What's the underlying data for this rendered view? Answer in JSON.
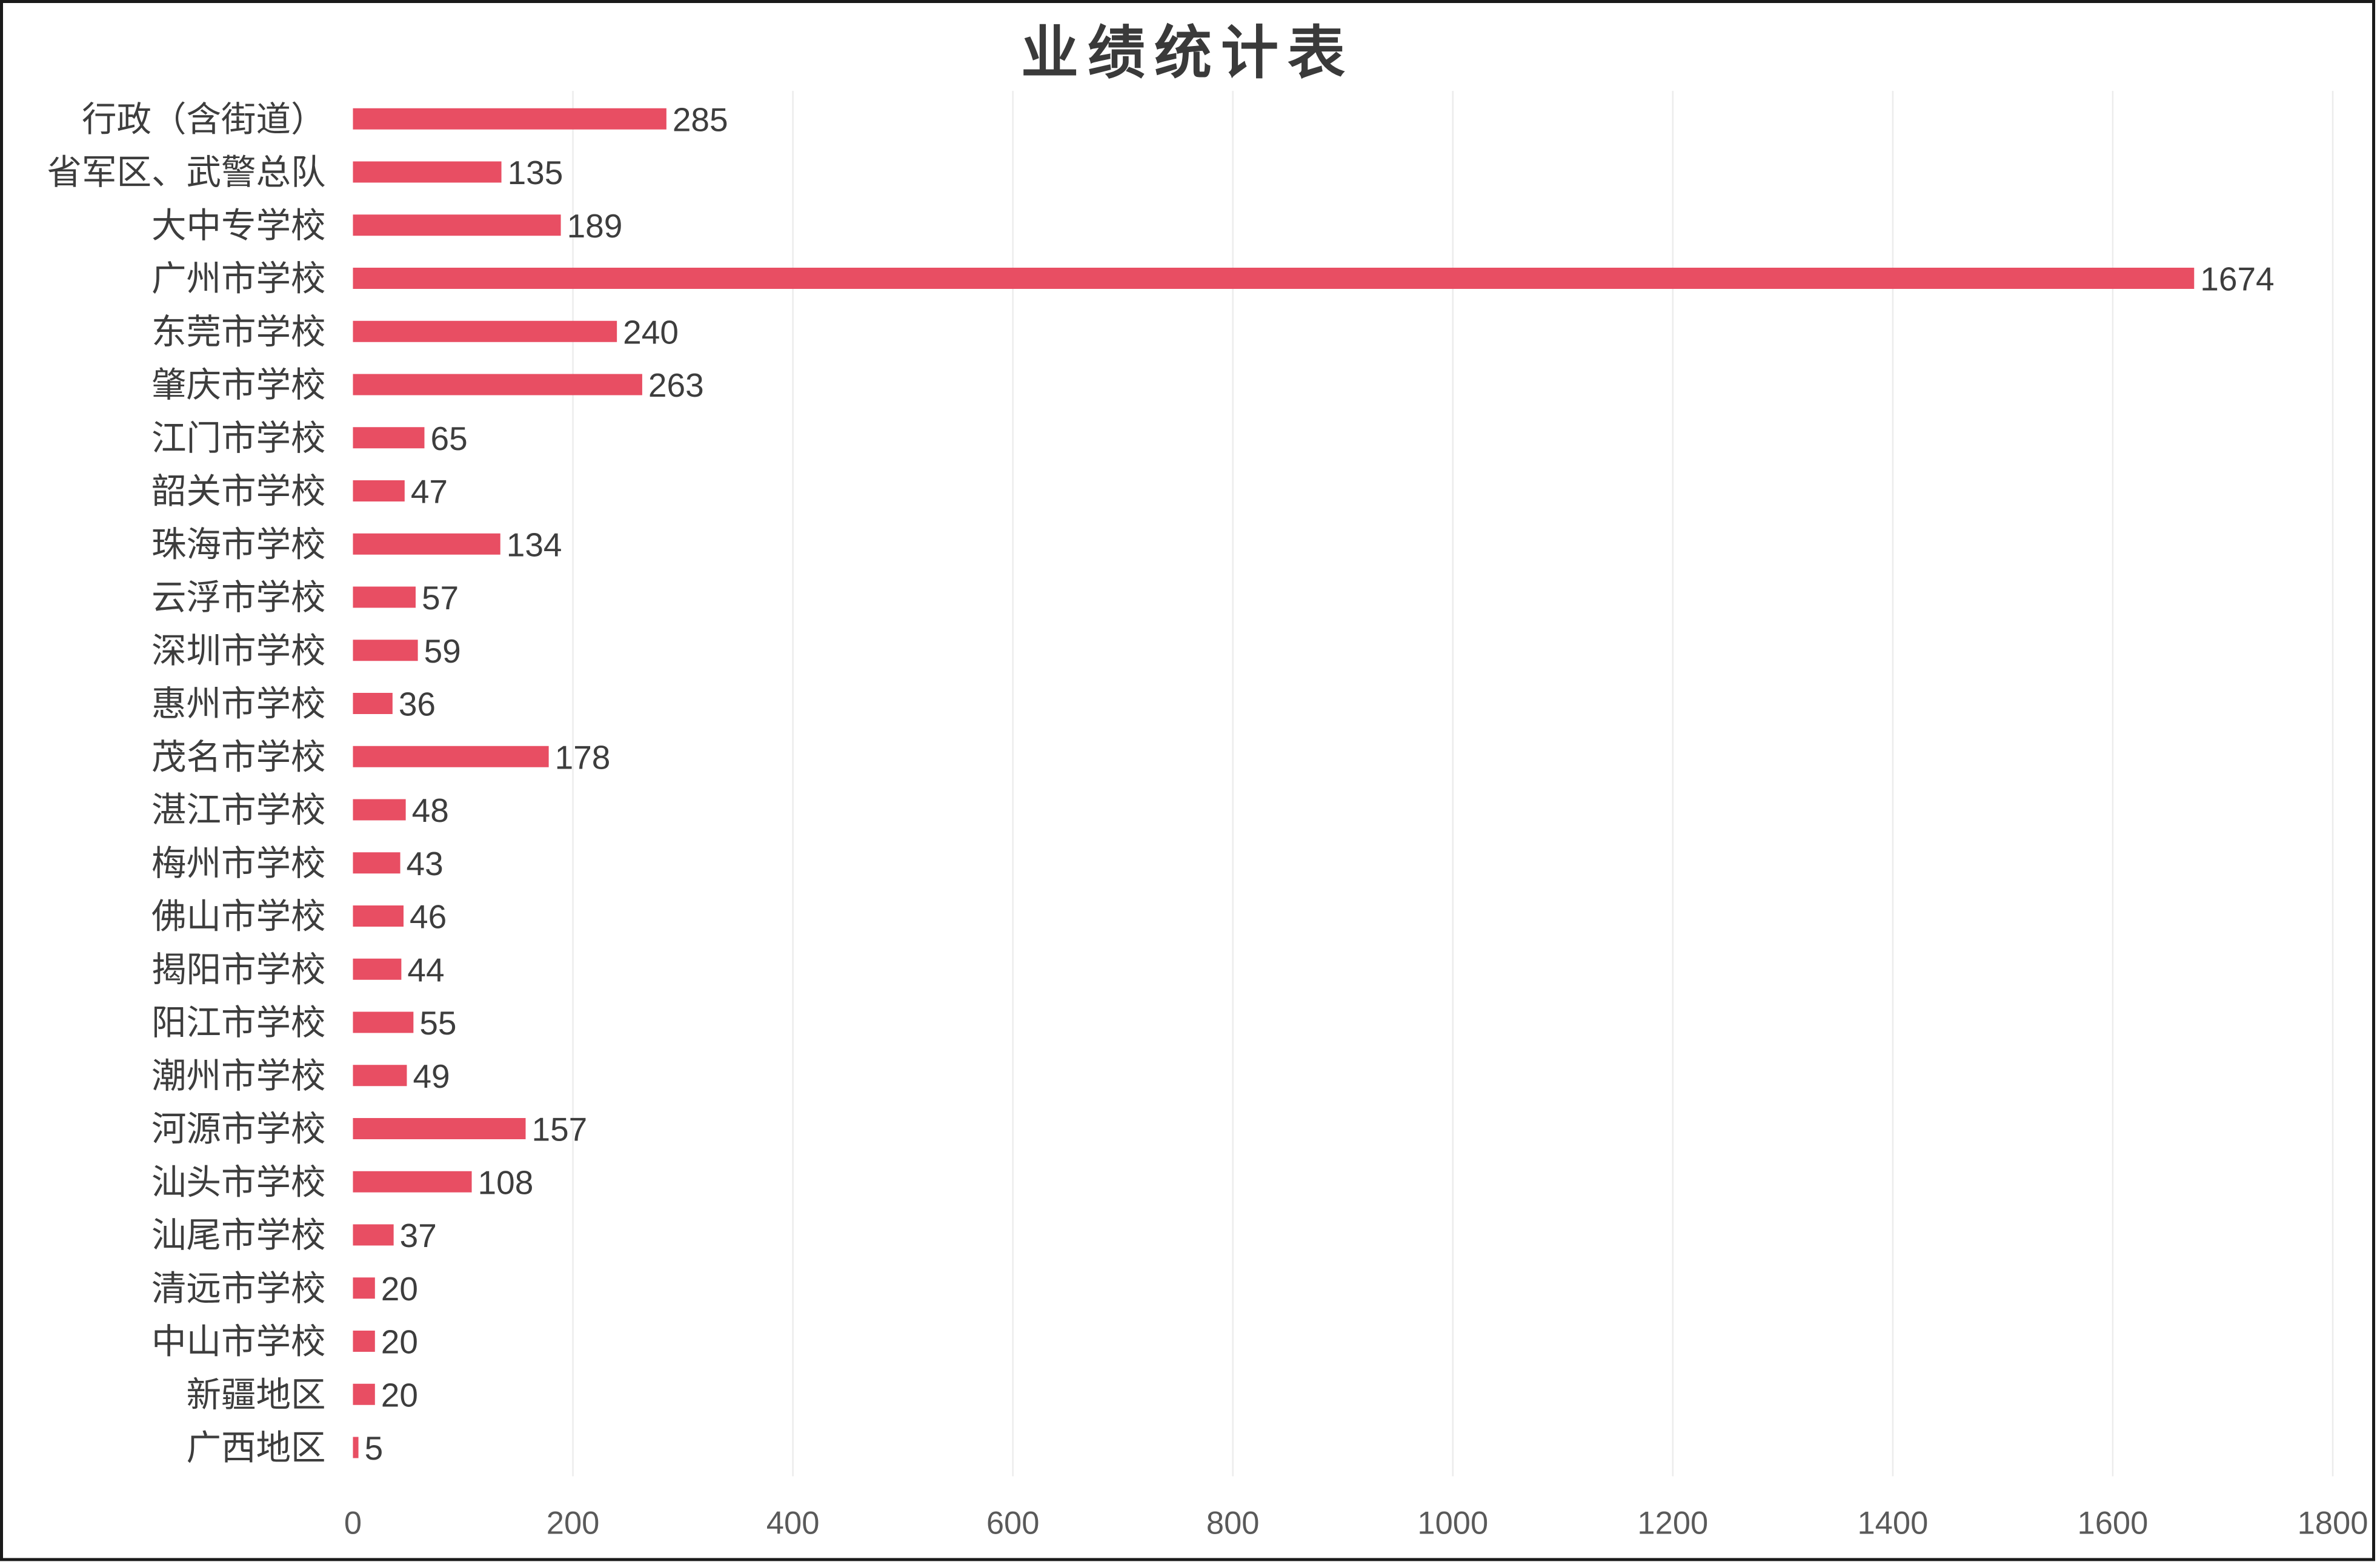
{
  "chart_data": {
    "type": "bar",
    "orientation": "horizontal",
    "title": "业绩统计表",
    "categories": [
      "行政（含街道）",
      "省军区、武警总队",
      "大中专学校",
      "广州市学校",
      "东莞市学校",
      "肇庆市学校",
      "江门市学校",
      "韶关市学校",
      "珠海市学校",
      "云浮市学校",
      "深圳市学校",
      "惠州市学校",
      "茂名市学校",
      "湛江市学校",
      "梅州市学校",
      "佛山市学校",
      "揭阳市学校",
      "阳江市学校",
      "潮州市学校",
      "河源市学校",
      "汕头市学校",
      "汕尾市学校",
      "清远市学校",
      "中山市学校",
      "新疆地区",
      "广西地区"
    ],
    "values": [
      285,
      135,
      189,
      1674,
      240,
      263,
      65,
      47,
      134,
      57,
      59,
      36,
      178,
      48,
      43,
      46,
      44,
      55,
      49,
      157,
      108,
      37,
      20,
      20,
      20,
      5
    ],
    "xlim": [
      0,
      1800
    ],
    "xticks": [
      "0",
      "200",
      "400",
      "600",
      "800",
      "1000",
      "1200",
      "1400",
      "1600",
      "1800"
    ],
    "grid": true,
    "legend": "none",
    "bar_color": "#e84e63"
  }
}
